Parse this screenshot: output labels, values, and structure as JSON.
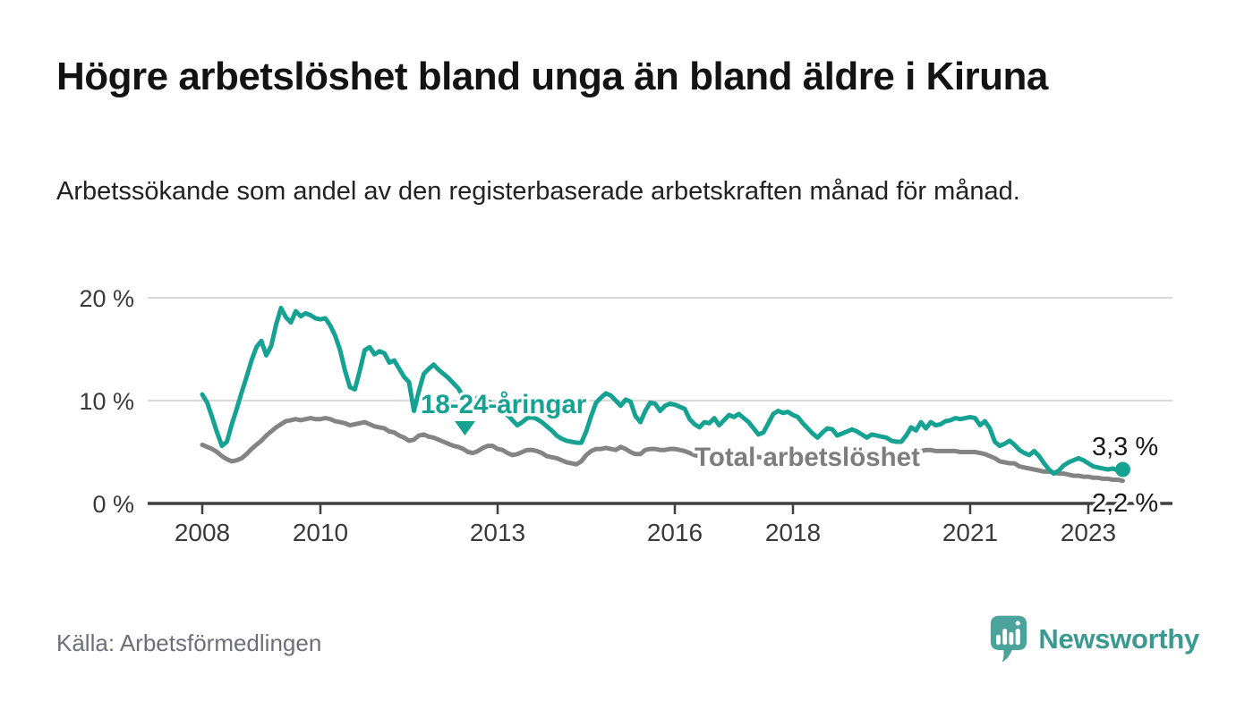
{
  "header": {
    "title": "Högre arbetslöshet bland unga än bland äldre i Kiruna",
    "subtitle": "Arbetssökande som andel av den registerbaserade arbetskraften månad för månad."
  },
  "footer": {
    "source": "Källa: Arbetsförmedlingen",
    "brand_name": "Newsworthy",
    "brand_color": "#3b9a90",
    "logo_icon": "speech-bubble-bar-chart-icon",
    "logo_icon_color": "#4aa49b"
  },
  "chart_data": {
    "type": "line",
    "title": "Högre arbetslöshet bland unga än bland äldre i Kiruna",
    "xlabel": "",
    "ylabel": "",
    "grid": "horizontal",
    "legend_position": "inline-labels",
    "x_unit": "month",
    "x_domain": {
      "start_year": 2008,
      "start_month": 1,
      "end_year": 2023,
      "end_month": 8
    },
    "ylim": [
      0,
      21.5
    ],
    "y_ticks": [
      {
        "value": 20,
        "label": "20 %"
      },
      {
        "value": 10,
        "label": "10 %"
      },
      {
        "value": 0,
        "label": "0 %"
      }
    ],
    "x_ticks": [
      {
        "year": 2008,
        "label": "2008"
      },
      {
        "year": 2010,
        "label": "2010"
      },
      {
        "year": 2013,
        "label": "2013"
      },
      {
        "year": 2016,
        "label": "2016"
      },
      {
        "year": 2018,
        "label": "2018"
      },
      {
        "year": 2021,
        "label": "2021"
      },
      {
        "year": 2023,
        "label": "2023"
      }
    ],
    "series": [
      {
        "name": "18-24-åringar",
        "color": "#16a292",
        "end_label": "3,3 %",
        "end_marker": "dot",
        "values": [
          10.6,
          9.8,
          8.4,
          6.9,
          5.6,
          6.0,
          7.7,
          9.2,
          10.8,
          12.3,
          13.9,
          15.2,
          15.8,
          14.4,
          15.3,
          17.4,
          19.0,
          18.1,
          17.6,
          18.7,
          18.2,
          18.5,
          18.3,
          18.0,
          17.9,
          18.0,
          17.3,
          16.3,
          14.9,
          12.9,
          11.3,
          11.1,
          12.9,
          14.9,
          15.2,
          14.5,
          14.8,
          14.6,
          13.7,
          13.9,
          13.1,
          12.3,
          11.8,
          9.0,
          10.9,
          12.6,
          13.1,
          13.5,
          13.0,
          12.6,
          12.2,
          11.7,
          11.2,
          10.4,
          9.6,
          9.9,
          10.3,
          10.1,
          9.9,
          9.7,
          9.5,
          9.1,
          8.6,
          8.1,
          7.6,
          7.9,
          8.3,
          8.4,
          8.2,
          7.9,
          7.5,
          7.1,
          6.6,
          6.3,
          6.1,
          6.0,
          5.9,
          5.9,
          7.0,
          8.5,
          9.8,
          10.3,
          10.7,
          10.5,
          10.0,
          9.5,
          10.1,
          9.9,
          8.5,
          7.9,
          9.0,
          9.8,
          9.7,
          9.0,
          9.5,
          9.7,
          9.6,
          9.4,
          9.2,
          8.2,
          7.7,
          7.4,
          7.9,
          7.8,
          8.3,
          7.6,
          8.1,
          8.6,
          8.4,
          8.7,
          8.3,
          7.9,
          7.3,
          6.7,
          6.9,
          7.8,
          8.7,
          9.0,
          8.8,
          8.9,
          8.6,
          8.4,
          7.8,
          7.3,
          6.8,
          6.4,
          6.9,
          7.3,
          7.2,
          6.6,
          6.8,
          7.0,
          7.2,
          7.0,
          6.7,
          6.4,
          6.7,
          6.6,
          6.5,
          6.4,
          6.1,
          6.0,
          6.0,
          6.6,
          7.4,
          7.1,
          7.9,
          7.3,
          7.9,
          7.6,
          7.7,
          8.0,
          8.1,
          8.3,
          8.2,
          8.3,
          8.4,
          8.3,
          7.6,
          8.0,
          7.3,
          6.0,
          5.6,
          5.8,
          6.1,
          5.7,
          5.2,
          4.9,
          4.7,
          5.1,
          4.6,
          3.9,
          3.3,
          2.9,
          3.2,
          3.7,
          4.0,
          4.2,
          4.4,
          4.2,
          3.9,
          3.6,
          3.5,
          3.4,
          3.3,
          3.4,
          3.2,
          3.3
        ]
      },
      {
        "name": "Total arbetslöshet",
        "color": "#848484",
        "end_label": "2,2 %",
        "end_marker": "none",
        "values": [
          5.7,
          5.5,
          5.3,
          5.0,
          4.6,
          4.3,
          4.1,
          4.2,
          4.4,
          4.8,
          5.3,
          5.7,
          6.1,
          6.6,
          7.0,
          7.4,
          7.7,
          8.0,
          8.1,
          8.2,
          8.1,
          8.2,
          8.3,
          8.2,
          8.2,
          8.3,
          8.2,
          8.0,
          7.9,
          7.8,
          7.6,
          7.7,
          7.8,
          7.9,
          7.7,
          7.5,
          7.4,
          7.3,
          7.0,
          6.9,
          6.6,
          6.4,
          6.1,
          6.2,
          6.6,
          6.7,
          6.5,
          6.4,
          6.2,
          6.0,
          5.8,
          5.6,
          5.5,
          5.3,
          5.0,
          4.9,
          5.1,
          5.4,
          5.6,
          5.6,
          5.3,
          5.2,
          4.9,
          4.7,
          4.8,
          5.0,
          5.2,
          5.2,
          5.1,
          4.9,
          4.6,
          4.5,
          4.4,
          4.2,
          4.0,
          3.9,
          3.8,
          4.1,
          4.7,
          5.1,
          5.3,
          5.3,
          5.4,
          5.3,
          5.2,
          5.5,
          5.3,
          5.0,
          4.8,
          4.8,
          5.2,
          5.3,
          5.3,
          5.2,
          5.2,
          5.3,
          5.3,
          5.2,
          5.1,
          4.9,
          4.7,
          4.6,
          4.7,
          4.8,
          4.8,
          4.8,
          4.9,
          4.9,
          4.9,
          4.9,
          4.8,
          4.7,
          4.6,
          4.5,
          4.5,
          4.6,
          4.7,
          4.7,
          4.6,
          4.6,
          4.5,
          4.6,
          4.5,
          4.4,
          4.4,
          4.3,
          4.4,
          4.4,
          4.5,
          4.4,
          4.4,
          4.4,
          4.5,
          4.4,
          4.4,
          4.3,
          4.4,
          4.3,
          4.4,
          4.3,
          4.3,
          4.3,
          4.4,
          4.5,
          4.7,
          4.8,
          5.1,
          5.2,
          5.2,
          5.1,
          5.1,
          5.1,
          5.1,
          5.1,
          5.0,
          5.0,
          5.0,
          5.0,
          4.9,
          4.8,
          4.6,
          4.4,
          4.1,
          4.0,
          3.9,
          3.9,
          3.6,
          3.5,
          3.4,
          3.3,
          3.2,
          3.1,
          3.1,
          3.0,
          2.9,
          2.9,
          2.8,
          2.7,
          2.7,
          2.6,
          2.6,
          2.5,
          2.5,
          2.4,
          2.4,
          2.3,
          2.3,
          2.2
        ]
      }
    ],
    "annotations": [
      {
        "text": "18-24-åringar",
        "color": "#16a292",
        "marker": "triangle-down"
      },
      {
        "text": "Total arbetslöshet",
        "color": "#7d7d7d",
        "marker": "none"
      }
    ],
    "colors": {
      "grid": "#d9d9d9",
      "axis": "#3f3f3f",
      "tick_label": "#3a3a3a",
      "end_label_text": "#1a1a1a"
    }
  }
}
